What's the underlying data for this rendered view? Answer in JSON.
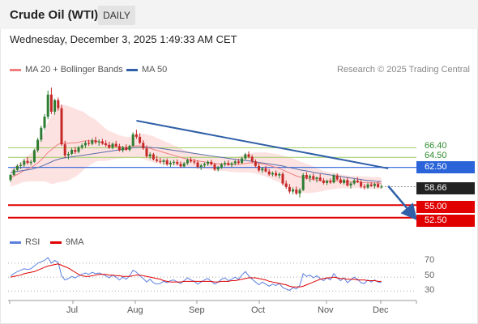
{
  "header": {
    "title": "Crude Oil (WTI)",
    "interval": "DAILY"
  },
  "datetime": "Wednesday, December 3, 2025 1:49:33 AM CET",
  "legend": {
    "ma20_bollinger": "MA 20 + Bollinger Bands",
    "ma50": "MA 50",
    "credit": "Research © 2025 Trading Central"
  },
  "levels": {
    "r2": "66.40",
    "r1": "64.50",
    "pivot": "62.50",
    "last": "58.66",
    "s1": "55.00",
    "s2": "52.50"
  },
  "rsi_legend": {
    "rsi": "RSI",
    "ma9": "9MA"
  },
  "rsi_axis": [
    "70",
    "50",
    "30"
  ],
  "x_axis": [
    "Jul",
    "Aug",
    "Sep",
    "Oct",
    "Nov",
    "Dec"
  ],
  "colors": {
    "up": "#2e7d32",
    "down": "#c62828",
    "pivot": "#2b63d9",
    "support": "#e00000",
    "resistance": "#9ccc65",
    "trendline": "#2f5fa8",
    "ma20": "#f08080",
    "ma50": "#5b6fa8",
    "band": "#fde2e2",
    "rsi": "#5b7fe0"
  },
  "chart_data": {
    "type": "candlestick",
    "price_range": [
      51,
      81
    ],
    "rsi_range": [
      20,
      85
    ],
    "candles": [
      [
        60.0,
        61.2,
        59.6,
        61.0
      ],
      [
        61.0,
        62.3,
        60.8,
        62.0
      ],
      [
        62.0,
        63.1,
        61.7,
        62.8
      ],
      [
        62.8,
        63.5,
        62.2,
        63.0
      ],
      [
        63.0,
        64.2,
        62.6,
        63.8
      ],
      [
        63.8,
        64.6,
        63.1,
        63.4
      ],
      [
        63.4,
        64.0,
        62.9,
        63.6
      ],
      [
        63.6,
        66.2,
        63.4,
        65.9
      ],
      [
        65.9,
        68.4,
        65.5,
        68.0
      ],
      [
        68.0,
        70.8,
        67.6,
        70.4
      ],
      [
        70.4,
        73.1,
        70.0,
        72.6
      ],
      [
        72.6,
        77.8,
        72.1,
        77.0
      ],
      [
        77.0,
        78.4,
        73.1,
        73.6
      ],
      [
        73.6,
        76.2,
        73.0,
        75.9
      ],
      [
        75.9,
        76.4,
        73.8,
        74.3
      ],
      [
        74.3,
        75.0,
        66.8,
        67.1
      ],
      [
        67.1,
        67.8,
        64.4,
        64.9
      ],
      [
        64.9,
        65.6,
        64.1,
        65.2
      ],
      [
        65.2,
        66.4,
        64.9,
        66.0
      ],
      [
        66.0,
        66.6,
        65.2,
        65.6
      ],
      [
        65.6,
        66.8,
        65.3,
        66.5
      ],
      [
        66.5,
        67.3,
        66.1,
        66.9
      ],
      [
        66.9,
        67.8,
        66.4,
        67.4
      ],
      [
        67.4,
        68.0,
        66.8,
        67.2
      ],
      [
        67.2,
        68.3,
        66.9,
        67.9
      ],
      [
        67.9,
        68.6,
        67.1,
        67.5
      ],
      [
        67.5,
        68.1,
        66.8,
        67.7
      ],
      [
        67.7,
        68.2,
        67.0,
        67.3
      ],
      [
        67.3,
        67.9,
        66.6,
        67.0
      ],
      [
        67.0,
        67.6,
        66.2,
        66.4
      ],
      [
        66.4,
        67.5,
        66.1,
        67.2
      ],
      [
        67.2,
        67.8,
        66.5,
        66.7
      ],
      [
        66.7,
        67.2,
        65.7,
        65.9
      ],
      [
        65.9,
        66.8,
        65.5,
        66.5
      ],
      [
        66.5,
        67.1,
        65.8,
        66.0
      ],
      [
        66.0,
        67.0,
        65.7,
        66.8
      ],
      [
        66.8,
        69.5,
        66.6,
        69.1
      ],
      [
        69.1,
        70.0,
        68.2,
        68.6
      ],
      [
        68.6,
        69.3,
        67.1,
        67.4
      ],
      [
        67.4,
        67.9,
        66.0,
        66.3
      ],
      [
        66.3,
        66.9,
        64.4,
        64.7
      ],
      [
        64.7,
        65.5,
        64.2,
        65.1
      ],
      [
        65.1,
        65.4,
        63.9,
        64.1
      ],
      [
        64.1,
        64.8,
        63.5,
        63.8
      ],
      [
        63.8,
        64.4,
        63.2,
        63.6
      ],
      [
        63.6,
        64.2,
        63.0,
        63.9
      ],
      [
        63.9,
        64.3,
        62.8,
        63.1
      ],
      [
        63.1,
        63.8,
        62.6,
        63.4
      ],
      [
        63.4,
        64.0,
        62.9,
        63.6
      ],
      [
        63.6,
        64.1,
        62.9,
        63.2
      ],
      [
        63.2,
        63.7,
        62.4,
        62.7
      ],
      [
        62.7,
        63.6,
        62.5,
        63.3
      ],
      [
        63.3,
        64.3,
        63.0,
        64.0
      ],
      [
        64.0,
        64.5,
        63.4,
        63.7
      ],
      [
        63.7,
        64.2,
        63.1,
        63.5
      ],
      [
        63.5,
        63.9,
        62.3,
        62.6
      ],
      [
        62.6,
        63.2,
        62.0,
        62.9
      ],
      [
        62.9,
        63.5,
        62.4,
        63.2
      ],
      [
        63.2,
        63.9,
        62.8,
        63.6
      ],
      [
        63.6,
        64.0,
        62.9,
        63.1
      ],
      [
        63.1,
        63.4,
        61.8,
        62.1
      ],
      [
        62.1,
        62.8,
        61.7,
        62.5
      ],
      [
        62.5,
        63.4,
        62.2,
        63.1
      ],
      [
        63.1,
        63.8,
        62.7,
        63.4
      ],
      [
        63.4,
        63.9,
        62.8,
        63.0
      ],
      [
        63.0,
        63.6,
        62.6,
        63.3
      ],
      [
        63.3,
        64.0,
        62.9,
        63.7
      ],
      [
        63.7,
        64.2,
        63.1,
        63.4
      ],
      [
        63.4,
        64.6,
        63.2,
        64.3
      ],
      [
        64.3,
        65.4,
        64.0,
        65.1
      ],
      [
        65.1,
        65.7,
        64.3,
        64.6
      ],
      [
        64.6,
        65.0,
        63.4,
        63.7
      ],
      [
        63.7,
        64.1,
        62.5,
        62.8
      ],
      [
        62.8,
        63.3,
        61.6,
        61.9
      ],
      [
        61.9,
        62.6,
        61.4,
        62.3
      ],
      [
        62.3,
        62.8,
        61.5,
        61.7
      ],
      [
        61.7,
        62.2,
        60.8,
        61.1
      ],
      [
        61.1,
        61.7,
        60.7,
        61.4
      ],
      [
        61.4,
        61.9,
        60.6,
        60.9
      ],
      [
        60.9,
        61.5,
        60.3,
        61.2
      ],
      [
        61.2,
        61.6,
        58.9,
        59.3
      ],
      [
        59.3,
        59.9,
        58.2,
        58.6
      ],
      [
        58.6,
        59.2,
        57.3,
        57.7
      ],
      [
        57.7,
        58.5,
        57.2,
        58.1
      ],
      [
        58.1,
        58.7,
        57.0,
        57.3
      ],
      [
        57.3,
        58.4,
        56.5,
        58.0
      ],
      [
        58.0,
        61.4,
        57.8,
        61.0
      ],
      [
        61.0,
        61.6,
        60.1,
        60.4
      ],
      [
        60.4,
        61.1,
        59.6,
        60.8
      ],
      [
        60.8,
        61.3,
        59.9,
        60.2
      ],
      [
        60.2,
        60.7,
        59.5,
        60.5
      ],
      [
        60.5,
        61.2,
        59.7,
        59.9
      ],
      [
        59.9,
        60.4,
        59.1,
        59.4
      ],
      [
        59.4,
        60.1,
        59.0,
        59.8
      ],
      [
        59.8,
        60.3,
        59.2,
        59.5
      ],
      [
        59.5,
        61.2,
        59.3,
        60.9
      ],
      [
        60.9,
        61.3,
        59.9,
        60.1
      ],
      [
        60.1,
        60.6,
        59.2,
        59.4
      ],
      [
        59.4,
        60.3,
        59.1,
        60.0
      ],
      [
        60.0,
        60.5,
        58.7,
        58.9
      ],
      [
        58.9,
        59.6,
        58.3,
        59.3
      ],
      [
        59.3,
        60.2,
        59.0,
        59.9
      ],
      [
        59.9,
        60.5,
        59.4,
        59.6
      ],
      [
        59.6,
        60.0,
        58.4,
        58.7
      ],
      [
        58.7,
        59.2,
        58.1,
        58.5
      ],
      [
        58.5,
        59.4,
        58.2,
        59.1
      ],
      [
        59.1,
        59.6,
        58.6,
        58.8
      ],
      [
        58.8,
        59.5,
        58.3,
        59.2
      ],
      [
        59.2,
        59.7,
        58.4,
        58.6
      ],
      [
        58.6,
        59.1,
        58.3,
        58.66
      ]
    ],
    "ma20": [
      60.5,
      60.8,
      61.1,
      61.5,
      61.9,
      62.2,
      62.5,
      62.9,
      63.4,
      64.0,
      64.7,
      65.5,
      66.0,
      66.6,
      67.1,
      67.3,
      67.3,
      67.3,
      67.4,
      67.4,
      67.5,
      67.7,
      67.8,
      67.8,
      67.8,
      67.8,
      67.6,
      67.3,
      67.0,
      66.8,
      66.8,
      66.7,
      66.6,
      66.5,
      66.5,
      66.5,
      66.7,
      66.8,
      66.8,
      66.7,
      66.5,
      66.3,
      66.1,
      65.9,
      65.7,
      65.5,
      65.3,
      65.1,
      64.9,
      64.7,
      64.5,
      64.3,
      64.2,
      64.0,
      63.9,
      63.8,
      63.7,
      63.6,
      63.5,
      63.4,
      63.3,
      63.2,
      63.2,
      63.2,
      63.1,
      63.1,
      63.1,
      63.1,
      63.2,
      63.3,
      63.4,
      63.4,
      63.4,
      63.3,
      63.2,
      63.1,
      62.9,
      62.7,
      62.5,
      62.3,
      62.0,
      61.7,
      61.4,
      61.1,
      60.8,
      60.6,
      60.5,
      60.3,
      60.2,
      60.1,
      60.0,
      59.9,
      59.8,
      59.8,
      59.8,
      59.8,
      59.8,
      59.7,
      59.7,
      59.6,
      59.6,
      59.6,
      59.6,
      59.5,
      59.5,
      59.5,
      59.4,
      59.4,
      59.4,
      59.3
    ],
    "ma50": [
      61.5,
      61.6,
      61.7,
      61.8,
      61.9,
      62.0,
      62.1,
      62.3,
      62.5,
      62.7,
      63.0,
      63.3,
      63.6,
      63.9,
      64.1,
      64.3,
      64.4,
      64.5,
      64.6,
      64.7,
      64.8,
      64.9,
      65.0,
      65.1,
      65.2,
      65.3,
      65.4,
      65.5,
      65.6,
      65.7,
      65.8,
      65.9,
      66.0,
      66.1,
      66.2,
      66.3,
      66.4,
      66.5,
      66.5,
      66.5,
      66.5,
      66.5,
      66.4,
      66.4,
      66.3,
      66.2,
      66.1,
      66.0,
      65.9,
      65.8,
      65.7,
      65.6,
      65.5,
      65.4,
      65.3,
      65.2,
      65.1,
      65.0,
      64.9,
      64.8,
      64.7,
      64.6,
      64.5,
      64.4,
      64.3,
      64.2,
      64.1,
      64.0,
      63.9,
      63.9,
      63.8,
      63.7,
      63.6,
      63.5,
      63.4,
      63.3,
      63.2,
      63.1,
      63.0,
      62.9,
      62.8,
      62.6,
      62.5,
      62.3,
      62.2,
      62.0,
      61.9,
      61.8,
      61.7,
      61.5,
      61.4,
      61.3,
      61.2,
      61.1,
      61.0,
      60.9,
      60.8,
      60.7,
      60.6,
      60.5,
      60.4,
      60.3,
      60.2,
      60.1,
      60.0,
      59.9,
      59.9,
      59.8,
      59.7,
      59.7
    ],
    "bb_width": [
      1.8,
      1.9,
      2.0,
      2.1,
      2.3,
      2.5,
      2.8,
      3.2,
      3.7,
      4.3,
      5.0,
      6.0,
      6.8,
      7.3,
      7.6,
      7.7,
      7.6,
      7.4,
      7.1,
      6.8,
      6.4,
      6.0,
      5.5,
      5.0,
      4.6,
      4.2,
      3.8,
      3.5,
      3.2,
      2.9,
      2.7,
      2.5,
      2.3,
      2.2,
      2.1,
      2.1,
      2.2,
      2.3,
      2.4,
      2.5,
      2.6,
      2.6,
      2.6,
      2.5,
      2.4,
      2.3,
      2.2,
      2.1,
      2.0,
      1.9,
      1.8,
      1.7,
      1.6,
      1.6,
      1.5,
      1.5,
      1.5,
      1.4,
      1.4,
      1.4,
      1.4,
      1.4,
      1.4,
      1.4,
      1.4,
      1.5,
      1.5,
      1.6,
      1.7,
      1.8,
      1.9,
      2.0,
      2.1,
      2.2,
      2.3,
      2.4,
      2.5,
      2.6,
      2.7,
      2.8,
      2.9,
      3.0,
      3.1,
      3.2,
      3.2,
      3.1,
      3.0,
      2.9,
      2.8,
      2.6,
      2.4,
      2.2,
      2.0,
      1.8,
      1.7,
      1.6,
      1.5,
      1.4,
      1.3,
      1.3,
      1.2,
      1.2,
      1.2,
      1.2,
      1.2,
      1.2,
      1.2,
      1.2,
      1.2,
      1.2
    ],
    "rsi": [
      52,
      55,
      58,
      60,
      62,
      61,
      62,
      66,
      70,
      72,
      74,
      78,
      70,
      74,
      71,
      52,
      46,
      48,
      51,
      49,
      52,
      54,
      56,
      54,
      57,
      55,
      56,
      54,
      52,
      49,
      53,
      50,
      46,
      50,
      47,
      52,
      60,
      57,
      52,
      48,
      43,
      47,
      42,
      40,
      41,
      44,
      42,
      45,
      46,
      43,
      41,
      45,
      49,
      46,
      44,
      40,
      43,
      46,
      48,
      44,
      40,
      43,
      47,
      49,
      45,
      47,
      50,
      47,
      53,
      58,
      52,
      47,
      43,
      39,
      43,
      40,
      37,
      40,
      38,
      41,
      35,
      33,
      31,
      35,
      33,
      38,
      55,
      51,
      53,
      49,
      52,
      48,
      45,
      49,
      46,
      55,
      49,
      45,
      49,
      42,
      46,
      50,
      47,
      42,
      41,
      46,
      43,
      46,
      43,
      42
    ],
    "rsi_ma9": [
      50,
      51,
      52,
      53,
      55,
      56,
      57,
      58,
      60,
      62,
      64,
      66,
      67,
      68,
      69,
      67,
      65,
      63,
      60,
      57,
      54,
      52,
      51,
      51,
      52,
      53,
      54,
      54,
      54,
      53,
      53,
      52,
      52,
      51,
      51,
      51,
      52,
      53,
      53,
      52,
      51,
      50,
      49,
      48,
      47,
      45,
      44,
      43,
      43,
      43,
      43,
      44,
      44,
      44,
      44,
      44,
      44,
      44,
      44,
      44,
      43,
      43,
      44,
      44,
      44,
      45,
      45,
      46,
      47,
      48,
      49,
      49,
      49,
      48,
      47,
      46,
      44,
      43,
      42,
      41,
      40,
      39,
      37,
      36,
      36,
      36,
      37,
      39,
      41,
      43,
      45,
      47,
      48,
      49,
      49,
      50,
      49,
      48,
      48,
      47,
      47,
      47,
      46,
      46,
      46,
      45,
      45,
      45,
      44,
      44
    ],
    "trend_main": {
      "from": [
        37,
        71.8
      ],
      "to": [
        111,
        62.3
      ]
    },
    "trend_projection": {
      "from": [
        111,
        58.8
      ],
      "to": [
        118,
        53.2
      ]
    }
  }
}
